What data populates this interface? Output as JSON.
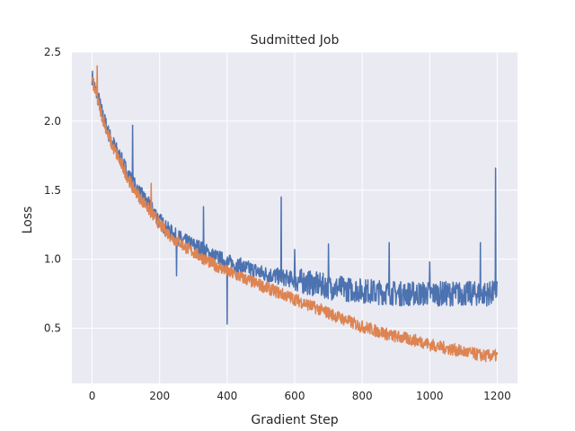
{
  "chart_data": {
    "type": "line",
    "title": "Sudmitted Job",
    "xlabel": "Gradient Step",
    "ylabel": "Loss",
    "xlim": [
      -60,
      1260
    ],
    "ylim": [
      0.1,
      2.5
    ],
    "grid": true,
    "legend": "none",
    "xticks": [
      0,
      200,
      400,
      600,
      800,
      1000,
      1200
    ],
    "xtick_labels": [
      "0",
      "200",
      "400",
      "600",
      "800",
      "1000",
      "1200"
    ],
    "yticks": [
      0.5,
      1.0,
      1.5,
      2.0,
      2.5
    ],
    "ytick_labels": [
      "0.5",
      "1.0",
      "1.5",
      "2.0",
      "2.5"
    ],
    "style": {
      "background": "#eaeaf2",
      "grid_color": "#ffffff"
    },
    "series": [
      {
        "color": "#4c72b0",
        "x": [
          0,
          10,
          20,
          30,
          40,
          50,
          60,
          70,
          80,
          90,
          100,
          110,
          120,
          130,
          140,
          150,
          160,
          170,
          180,
          190,
          200,
          220,
          240,
          250,
          260,
          280,
          300,
          320,
          340,
          360,
          380,
          400,
          420,
          440,
          460,
          480,
          500,
          520,
          540,
          560,
          580,
          600,
          620,
          640,
          660,
          680,
          700,
          720,
          740,
          760,
          780,
          800,
          820,
          840,
          860,
          880,
          900,
          920,
          940,
          960,
          980,
          1000,
          1020,
          1040,
          1060,
          1080,
          1100,
          1120,
          1140,
          1160,
          1180,
          1195,
          1200
        ],
        "y": [
          2.32,
          2.22,
          2.15,
          2.05,
          1.98,
          1.9,
          1.85,
          1.8,
          1.75,
          1.7,
          1.65,
          1.6,
          1.55,
          1.52,
          1.48,
          1.45,
          1.42,
          1.38,
          1.35,
          1.32,
          1.28,
          1.22,
          1.18,
          1.16,
          1.15,
          1.12,
          1.1,
          1.08,
          1.05,
          1.02,
          1.0,
          0.98,
          0.96,
          0.95,
          0.93,
          0.92,
          0.9,
          0.89,
          0.88,
          0.87,
          0.86,
          0.85,
          0.84,
          0.83,
          0.82,
          0.81,
          0.8,
          0.79,
          0.79,
          0.78,
          0.78,
          0.77,
          0.77,
          0.76,
          0.76,
          0.76,
          0.75,
          0.75,
          0.75,
          0.75,
          0.75,
          0.75,
          0.75,
          0.75,
          0.75,
          0.75,
          0.75,
          0.75,
          0.75,
          0.75,
          0.75,
          0.76,
          0.8
        ],
        "spikes": [
          [
            120,
            1.97
          ],
          [
            250,
            0.88
          ],
          [
            330,
            1.38
          ],
          [
            400,
            0.53
          ],
          [
            560,
            1.45
          ],
          [
            600,
            1.07
          ],
          [
            700,
            1.11
          ],
          [
            880,
            1.12
          ],
          [
            1000,
            0.98
          ],
          [
            1150,
            1.12
          ],
          [
            1195,
            1.66
          ]
        ],
        "noise": 0.06
      },
      {
        "color": "#dd8452",
        "x": [
          0,
          10,
          20,
          30,
          40,
          50,
          60,
          70,
          80,
          90,
          100,
          110,
          120,
          130,
          140,
          150,
          160,
          170,
          180,
          190,
          200,
          220,
          240,
          260,
          280,
          300,
          320,
          340,
          360,
          380,
          400,
          420,
          440,
          460,
          480,
          500,
          520,
          540,
          560,
          580,
          600,
          620,
          640,
          660,
          680,
          700,
          720,
          740,
          760,
          780,
          800,
          820,
          840,
          860,
          880,
          900,
          920,
          940,
          960,
          980,
          1000,
          1020,
          1040,
          1060,
          1080,
          1100,
          1120,
          1140,
          1160,
          1180,
          1200
        ],
        "y": [
          2.3,
          2.2,
          2.12,
          2.03,
          1.96,
          1.88,
          1.82,
          1.77,
          1.72,
          1.67,
          1.62,
          1.57,
          1.52,
          1.49,
          1.45,
          1.42,
          1.39,
          1.35,
          1.32,
          1.29,
          1.25,
          1.2,
          1.15,
          1.12,
          1.08,
          1.05,
          1.02,
          0.99,
          0.96,
          0.94,
          0.91,
          0.89,
          0.87,
          0.85,
          0.83,
          0.81,
          0.79,
          0.77,
          0.75,
          0.73,
          0.71,
          0.69,
          0.67,
          0.65,
          0.63,
          0.61,
          0.59,
          0.57,
          0.55,
          0.53,
          0.51,
          0.5,
          0.48,
          0.47,
          0.45,
          0.44,
          0.43,
          0.42,
          0.41,
          0.4,
          0.38,
          0.37,
          0.36,
          0.35,
          0.34,
          0.33,
          0.32,
          0.31,
          0.3,
          0.3,
          0.3
        ],
        "spikes": [
          [
            15,
            2.4
          ],
          [
            175,
            1.55
          ]
        ],
        "noise": 0.045
      }
    ]
  }
}
